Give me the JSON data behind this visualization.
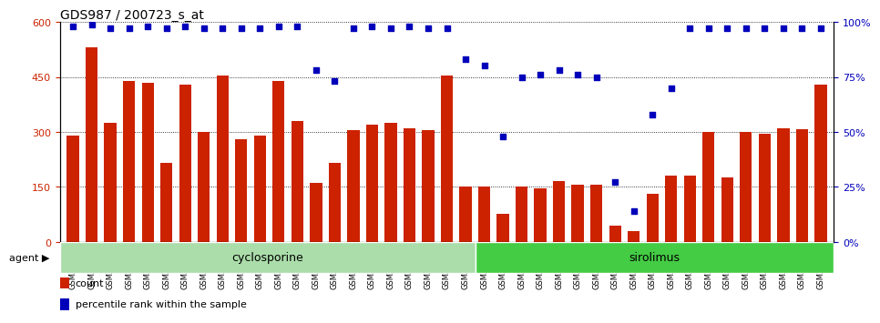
{
  "title": "GDS987 / 200723_s_at",
  "categories": [
    "GSM30418",
    "GSM30419",
    "GSM30420",
    "GSM30421",
    "GSM30422",
    "GSM30423",
    "GSM30424",
    "GSM30425",
    "GSM30426",
    "GSM30427",
    "GSM30428",
    "GSM30429",
    "GSM30430",
    "GSM30431",
    "GSM30432",
    "GSM30433",
    "GSM30434",
    "GSM30435",
    "GSM30436",
    "GSM30437",
    "GSM30438",
    "GSM30439",
    "GSM30440",
    "GSM30441",
    "GSM30442",
    "GSM30443",
    "GSM30444",
    "GSM30445",
    "GSM30446",
    "GSM30447",
    "GSM30448",
    "GSM30449",
    "GSM30450",
    "GSM30451",
    "GSM30452",
    "GSM30453",
    "GSM30454",
    "GSM30455",
    "GSM30456",
    "GSM30457",
    "GSM30458"
  ],
  "bar_values": [
    290,
    530,
    325,
    440,
    435,
    215,
    430,
    300,
    455,
    280,
    290,
    440,
    330,
    160,
    215,
    305,
    320,
    325,
    310,
    305,
    455,
    150,
    150,
    75,
    150,
    145,
    165,
    155,
    155,
    45,
    30,
    130,
    180,
    180,
    300,
    175,
    300,
    295,
    310,
    308,
    430
  ],
  "percentile_values": [
    98,
    99,
    97,
    97,
    98,
    97,
    98,
    97,
    97,
    97,
    97,
    98,
    98,
    78,
    73,
    97,
    98,
    97,
    98,
    97,
    97,
    83,
    80,
    48,
    75,
    76,
    78,
    76,
    75,
    27,
    14,
    58,
    70,
    97,
    97,
    97,
    97,
    97,
    97,
    97,
    97
  ],
  "cyclosporine_count": 22,
  "sirolimus_count": 19,
  "bar_color": "#cc2200",
  "dot_color": "#0000bb",
  "cyclosporine_color": "#aaddaa",
  "sirolimus_color": "#44cc44",
  "agent_label": "agent",
  "cyclosporine_label": "cyclosporine",
  "sirolimus_label": "sirolimus",
  "legend_count": "count",
  "legend_percentile": "percentile rank within the sample",
  "ylim_left": [
    0,
    600
  ],
  "ylim_right": [
    0,
    100
  ],
  "yticks_left": [
    0,
    150,
    300,
    450,
    600
  ],
  "yticks_right": [
    0,
    25,
    50,
    75,
    100
  ],
  "title_fontsize": 10,
  "tick_fontsize": 6,
  "label_fontsize": 8
}
